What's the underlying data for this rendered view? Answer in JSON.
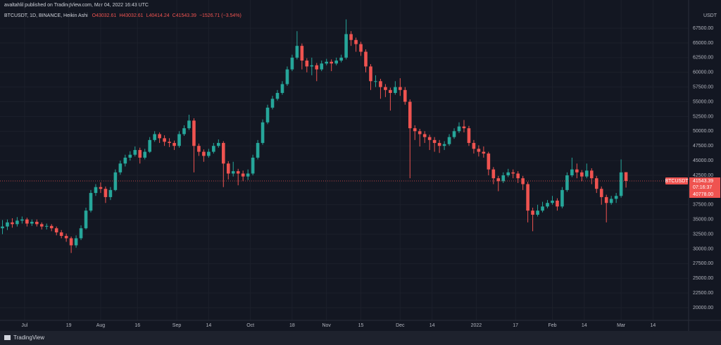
{
  "header": "avaltahlil published on TradingView.com, Mar 04, 2022 16:43 UTC",
  "footer": "TradingView",
  "chart_data": {
    "type": "candlestick",
    "title": "BTCUSDT, 1D, BINANCE, Heikin Ashi",
    "legend_values": [
      "O43032.61",
      "H43032.61",
      "L40414.24",
      "C41543.39",
      "−1526.71 (−3.54%)"
    ],
    "currency": "USDT",
    "up_color": "#26a69a",
    "down_color": "#ef5350",
    "series": [
      {
        "name": "BTCUSDT",
        "ohlc": [
          [
            33500,
            34900,
            32500,
            33800
          ],
          [
            33800,
            35000,
            33200,
            34500
          ],
          [
            34500,
            35200,
            33600,
            34200
          ],
          [
            34200,
            35400,
            33800,
            34800
          ],
          [
            34800,
            35500,
            34300,
            35000
          ],
          [
            35000,
            35300,
            33800,
            34300
          ],
          [
            34300,
            35000,
            33900,
            34600
          ],
          [
            34600,
            35000,
            33800,
            34200
          ],
          [
            34200,
            34500,
            33300,
            33800
          ],
          [
            33800,
            34300,
            33300,
            33900
          ],
          [
            33900,
            34200,
            33000,
            33500
          ],
          [
            33500,
            33800,
            32300,
            32800
          ],
          [
            32800,
            33200,
            31800,
            32200
          ],
          [
            32200,
            32600,
            31200,
            31800
          ],
          [
            31800,
            32100,
            29300,
            30600
          ],
          [
            30600,
            32300,
            30200,
            31800
          ],
          [
            31800,
            34000,
            31500,
            33500
          ],
          [
            33500,
            37000,
            33300,
            36500
          ],
          [
            36500,
            40000,
            36200,
            39500
          ],
          [
            39500,
            41000,
            39000,
            40500
          ],
          [
            40500,
            41300,
            39500,
            40200
          ],
          [
            40200,
            40600,
            37800,
            38800
          ],
          [
            38800,
            40500,
            38300,
            40000
          ],
          [
            40000,
            43500,
            39800,
            43000
          ],
          [
            43000,
            45000,
            42600,
            44500
          ],
          [
            44500,
            46000,
            44000,
            45500
          ],
          [
            45500,
            46600,
            45000,
            46000
          ],
          [
            46000,
            47400,
            45700,
            46800
          ],
          [
            46800,
            47200,
            44500,
            45500
          ],
          [
            45500,
            47000,
            45200,
            46500
          ],
          [
            46500,
            49000,
            46300,
            48500
          ],
          [
            48500,
            50000,
            48200,
            49500
          ],
          [
            49500,
            49800,
            48000,
            48800
          ],
          [
            48800,
            49300,
            47500,
            48200
          ],
          [
            48200,
            48800,
            47300,
            48000
          ],
          [
            48000,
            48400,
            46800,
            47500
          ],
          [
            47500,
            50000,
            47200,
            49500
          ],
          [
            49500,
            51000,
            49200,
            50500
          ],
          [
            50500,
            52800,
            50200,
            51800
          ],
          [
            51800,
            52200,
            43000,
            47500
          ],
          [
            47500,
            47900,
            45800,
            46500
          ],
          [
            46500,
            46900,
            44800,
            45800
          ],
          [
            45800,
            47000,
            45500,
            46500
          ],
          [
            46500,
            48000,
            46200,
            47500
          ],
          [
            47500,
            48600,
            47200,
            48000
          ],
          [
            48000,
            48300,
            40500,
            44500
          ],
          [
            44500,
            44900,
            41800,
            42800
          ],
          [
            42800,
            44800,
            42300,
            43200
          ],
          [
            43200,
            43600,
            40800,
            42800
          ],
          [
            42800,
            43300,
            41500,
            42300
          ],
          [
            42300,
            43500,
            41700,
            42800
          ],
          [
            42800,
            46000,
            42500,
            45500
          ],
          [
            45500,
            48500,
            45200,
            48000
          ],
          [
            48000,
            52000,
            47700,
            51500
          ],
          [
            51500,
            54500,
            51200,
            54000
          ],
          [
            54000,
            56000,
            53700,
            55500
          ],
          [
            55500,
            57000,
            55200,
            56500
          ],
          [
            56500,
            58500,
            56200,
            58000
          ],
          [
            58000,
            61000,
            57700,
            60500
          ],
          [
            60500,
            63000,
            60200,
            62500
          ],
          [
            62500,
            67000,
            62200,
            64500
          ],
          [
            64500,
            64900,
            60500,
            62000
          ],
          [
            62000,
            62400,
            60000,
            61000
          ],
          [
            61000,
            62500,
            59500,
            61200
          ],
          [
            61200,
            61600,
            58500,
            60500
          ],
          [
            60500,
            62000,
            60200,
            61500
          ],
          [
            61500,
            62300,
            61200,
            61800
          ],
          [
            61800,
            62200,
            60200,
            61500
          ],
          [
            61500,
            62500,
            61200,
            62000
          ],
          [
            62000,
            63000,
            61700,
            62500
          ],
          [
            62500,
            69000,
            62200,
            66500
          ],
          [
            66500,
            67000,
            64500,
            65500
          ],
          [
            65500,
            65900,
            63500,
            64800
          ],
          [
            64800,
            65200,
            62800,
            63500
          ],
          [
            63500,
            63900,
            60000,
            61000
          ],
          [
            61000,
            61400,
            57000,
            58500
          ],
          [
            58500,
            59500,
            57500,
            58500
          ],
          [
            58500,
            58900,
            55500,
            57500
          ],
          [
            57500,
            58000,
            55800,
            57000
          ],
          [
            57000,
            57400,
            53500,
            56500
          ],
          [
            56500,
            58500,
            56200,
            57500
          ],
          [
            57500,
            59000,
            56000,
            57000
          ],
          [
            57000,
            57500,
            54500,
            55000
          ],
          [
            55000,
            55400,
            42000,
            50500
          ],
          [
            50500,
            51000,
            48500,
            50000
          ],
          [
            50000,
            50400,
            47400,
            49500
          ],
          [
            49500,
            50000,
            48000,
            49000
          ],
          [
            49000,
            49400,
            46800,
            48500
          ],
          [
            48500,
            49000,
            46500,
            48000
          ],
          [
            48000,
            48500,
            46300,
            47500
          ],
          [
            47500,
            48300,
            46800,
            47800
          ],
          [
            47800,
            49500,
            47500,
            49000
          ],
          [
            49000,
            50500,
            48700,
            50000
          ],
          [
            50000,
            51500,
            49700,
            50800
          ],
          [
            50800,
            51900,
            49800,
            50500
          ],
          [
            50500,
            50900,
            47500,
            48000
          ],
          [
            48000,
            48500,
            46200,
            47000
          ],
          [
            47000,
            47600,
            45700,
            46500
          ],
          [
            46500,
            47400,
            45500,
            46200
          ],
          [
            46200,
            46500,
            42500,
            43500
          ],
          [
            43500,
            43900,
            41000,
            42000
          ],
          [
            42000,
            42400,
            39800,
            41500
          ],
          [
            41500,
            43000,
            41200,
            42500
          ],
          [
            42500,
            43600,
            42200,
            43000
          ],
          [
            43000,
            43500,
            42000,
            42800
          ],
          [
            42800,
            43200,
            41200,
            42000
          ],
          [
            42000,
            42400,
            40000,
            41000
          ],
          [
            41000,
            41400,
            34500,
            36500
          ],
          [
            36500,
            37000,
            33000,
            35800
          ],
          [
            35800,
            37500,
            35500,
            36500
          ],
          [
            36500,
            38000,
            36200,
            37200
          ],
          [
            37200,
            38300,
            36900,
            37800
          ],
          [
            37800,
            39000,
            37500,
            38200
          ],
          [
            38200,
            38600,
            36500,
            37200
          ],
          [
            37200,
            40500,
            36900,
            40000
          ],
          [
            40000,
            43000,
            39700,
            42500
          ],
          [
            42500,
            45500,
            42200,
            43500
          ],
          [
            43500,
            44500,
            42000,
            43000
          ],
          [
            43000,
            43400,
            41500,
            42300
          ],
          [
            42300,
            44500,
            42000,
            43300
          ],
          [
            43300,
            43700,
            41000,
            42000
          ],
          [
            42000,
            42400,
            39500,
            40200
          ],
          [
            40200,
            40600,
            37500,
            38800
          ],
          [
            38800,
            39200,
            34500,
            37800
          ],
          [
            37800,
            39000,
            37500,
            38500
          ],
          [
            38500,
            39500,
            37800,
            39000
          ],
          [
            39000,
            45200,
            38700,
            43000
          ],
          [
            43032.61,
            43032.61,
            40414.24,
            41543.39
          ]
        ]
      }
    ],
    "last_price": 41543.39,
    "countdown": "07:16:37",
    "low_marker": {
      "value": 40778,
      "label": "40778.00"
    },
    "xlim": [
      -0.5,
      139.75
    ],
    "xticks": [
      {
        "value": 4.5,
        "label": "Jul"
      },
      {
        "value": 13.5,
        "label": "19"
      },
      {
        "value": 20,
        "label": "Aug"
      },
      {
        "value": 27.5,
        "label": "16"
      },
      {
        "value": 35.5,
        "label": "Sep"
      },
      {
        "value": 42,
        "label": "14"
      },
      {
        "value": 50.5,
        "label": "Oct"
      },
      {
        "value": 59,
        "label": "18"
      },
      {
        "value": 66,
        "label": "Nov"
      },
      {
        "value": 73,
        "label": "15"
      },
      {
        "value": 81,
        "label": "Dec"
      },
      {
        "value": 87.5,
        "label": "14"
      },
      {
        "value": 96.5,
        "label": "2022"
      },
      {
        "value": 104.5,
        "label": "17"
      },
      {
        "value": 112,
        "label": "Feb"
      },
      {
        "value": 118.5,
        "label": "14"
      },
      {
        "value": 126,
        "label": "Mar"
      },
      {
        "value": 132.5,
        "label": "14"
      }
    ],
    "ylim": [
      17850,
      70500
    ],
    "yticks": [
      {
        "value": 20000,
        "label": "20000.00"
      },
      {
        "value": 22500,
        "label": "22500.00"
      },
      {
        "value": 25000,
        "label": "25000.00"
      },
      {
        "value": 27500,
        "label": "27500.00"
      },
      {
        "value": 30000,
        "label": "30000.00"
      },
      {
        "value": 32500,
        "label": "32500.00"
      },
      {
        "value": 35000,
        "label": "35000.00"
      },
      {
        "value": 37500,
        "label": "37500.00"
      },
      {
        "value": 40000,
        "label": "40000.00"
      },
      {
        "value": 42500,
        "label": "42500.00"
      },
      {
        "value": 45000,
        "label": "45000.00"
      },
      {
        "value": 47500,
        "label": "47500.00"
      },
      {
        "value": 50000,
        "label": "50000.00"
      },
      {
        "value": 52500,
        "label": "52500.00"
      },
      {
        "value": 55000,
        "label": "55000.00"
      },
      {
        "value": 57500,
        "label": "57500.00"
      },
      {
        "value": 60000,
        "label": "60000.00"
      },
      {
        "value": 62500,
        "label": "62500.00"
      },
      {
        "value": 65000,
        "label": "65000.00"
      },
      {
        "value": 67500,
        "label": "67500.00"
      }
    ],
    "grid": true
  }
}
